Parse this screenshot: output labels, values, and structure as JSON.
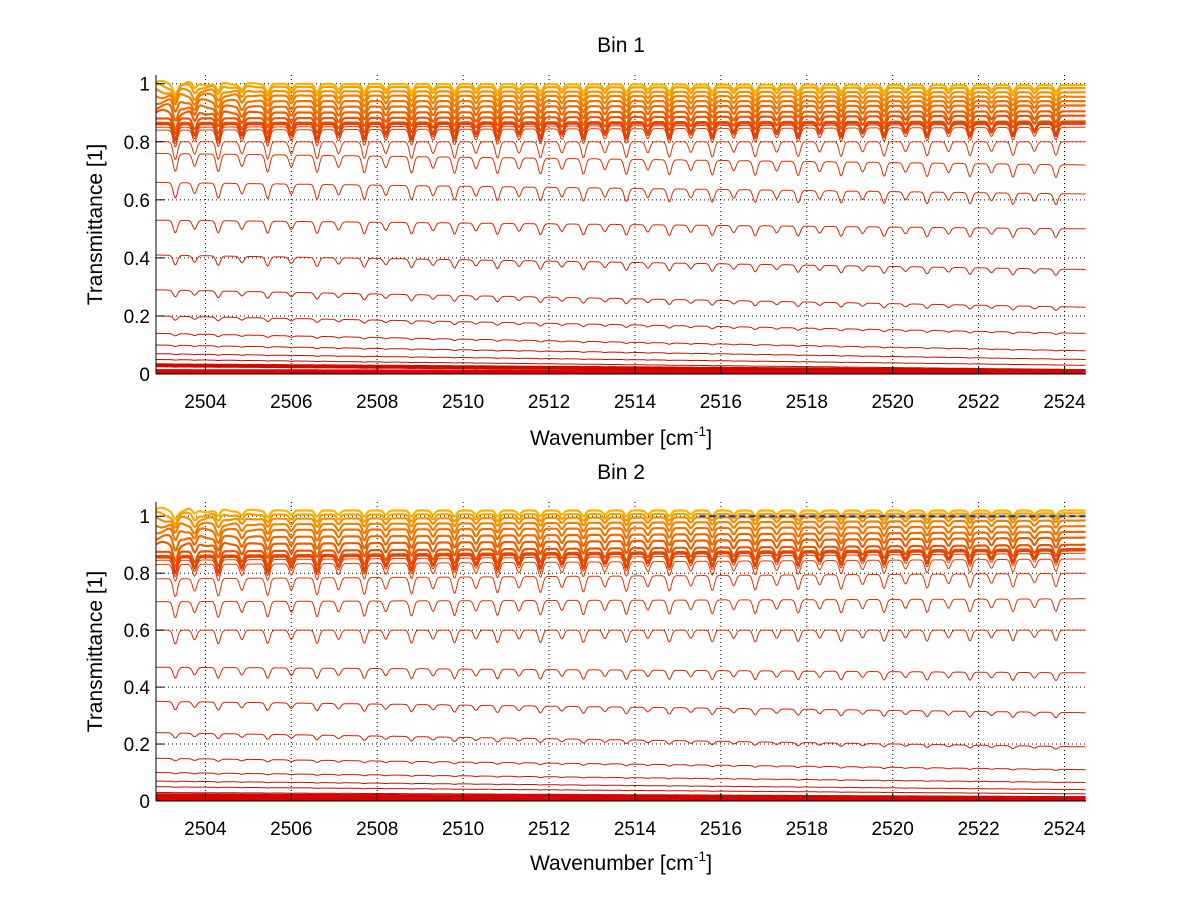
{
  "figure": {
    "background": "#ffffff"
  },
  "chart_data": [
    {
      "type": "line",
      "title": "Bin 1",
      "xlabel": "Wavenumber [cm",
      "xlabel_sup": "-1",
      "xlabel_close": "]",
      "ylabel": "Transmittance [1]",
      "xlim": [
        2502.85,
        2524.5
      ],
      "ylim": [
        0,
        1.03
      ],
      "x_ticks": [
        2504,
        2506,
        2508,
        2510,
        2512,
        2514,
        2516,
        2518,
        2520,
        2522,
        2524
      ],
      "x_tick_labels": [
        "2504",
        "2506",
        "2508",
        "2510",
        "2512",
        "2514",
        "2516",
        "2518",
        "2520",
        "2522",
        "2524"
      ],
      "y_ticks": [
        0,
        0.2,
        0.4,
        0.6,
        0.8,
        1
      ],
      "y_tick_labels": [
        "0",
        "0.2",
        "0.4",
        "0.6",
        "0.8",
        "1"
      ],
      "grid": true,
      "grid_style": "dotted",
      "legend": "none",
      "absorption_line_positions": [
        2503.3,
        2503.75,
        2504.3,
        2504.85,
        2505.45,
        2506.0,
        2506.6,
        2507.1,
        2507.7,
        2508.2,
        2508.8,
        2509.3,
        2509.8,
        2510.3,
        2510.8,
        2511.3,
        2511.8,
        2512.3,
        2512.8,
        2513.3,
        2513.8,
        2514.3,
        2514.8,
        2515.3,
        2515.8,
        2516.3,
        2516.8,
        2517.3,
        2517.8,
        2518.3,
        2518.8,
        2519.3,
        2519.8,
        2520.3,
        2520.8,
        2521.3,
        2521.8,
        2522.3,
        2522.8,
        2523.3,
        2523.8
      ],
      "series_baselines": [
        {
          "start": 1.0,
          "end": 0.995,
          "color": "#f6b300"
        },
        {
          "start": 0.99,
          "end": 0.985,
          "color": "#f4a000"
        },
        {
          "start": 0.975,
          "end": 0.97,
          "color": "#f29000"
        },
        {
          "start": 0.96,
          "end": 0.955,
          "color": "#f08000"
        },
        {
          "start": 0.94,
          "end": 0.94,
          "color": "#ee7400"
        },
        {
          "start": 0.92,
          "end": 0.925,
          "color": "#ec6a00"
        },
        {
          "start": 0.9,
          "end": 0.905,
          "color": "#ea5e00"
        },
        {
          "start": 0.88,
          "end": 0.89,
          "color": "#e85400"
        },
        {
          "start": 0.865,
          "end": 0.87,
          "color": "#e84a00"
        },
        {
          "start": 0.86,
          "end": 0.865,
          "color": "#e64400"
        },
        {
          "start": 0.85,
          "end": 0.86,
          "color": "#e43e00"
        },
        {
          "start": 0.84,
          "end": 0.85,
          "color": "#e23800"
        },
        {
          "start": 0.8,
          "end": 0.8,
          "color": "#e03400"
        },
        {
          "start": 0.76,
          "end": 0.72,
          "color": "#dc3000"
        },
        {
          "start": 0.66,
          "end": 0.62,
          "color": "#d82c00"
        },
        {
          "start": 0.53,
          "end": 0.5,
          "color": "#d42800"
        },
        {
          "start": 0.41,
          "end": 0.36,
          "color": "#d02400"
        },
        {
          "start": 0.29,
          "end": 0.23,
          "color": "#cc2000"
        },
        {
          "start": 0.2,
          "end": 0.14,
          "color": "#c81c00"
        },
        {
          "start": 0.14,
          "end": 0.08,
          "color": "#c41800"
        },
        {
          "start": 0.1,
          "end": 0.05,
          "color": "#c01400"
        },
        {
          "start": 0.07,
          "end": 0.03,
          "color": "#bc1000"
        },
        {
          "start": 0.05,
          "end": 0.015,
          "color": "#c00c00"
        },
        {
          "start": 0.03,
          "end": 0.01,
          "color": "#cc0a00"
        },
        {
          "start": 0.01,
          "end": 0.005,
          "color": "#dc0000"
        },
        {
          "start": 0.0,
          "end": 0.0,
          "color": "#e00000"
        }
      ]
    },
    {
      "type": "line",
      "title": "Bin 2",
      "xlabel": "Wavenumber [cm",
      "xlabel_sup": "-1",
      "xlabel_close": "]",
      "ylabel": "Transmittance [1]",
      "xlim": [
        2502.85,
        2524.5
      ],
      "ylim": [
        0,
        1.05
      ],
      "x_ticks": [
        2504,
        2506,
        2508,
        2510,
        2512,
        2514,
        2516,
        2518,
        2520,
        2522,
        2524
      ],
      "x_tick_labels": [
        "2504",
        "2506",
        "2508",
        "2510",
        "2512",
        "2514",
        "2516",
        "2518",
        "2520",
        "2522",
        "2524"
      ],
      "y_ticks": [
        0,
        0.2,
        0.4,
        0.6,
        0.8,
        1
      ],
      "y_tick_labels": [
        "0",
        "0.2",
        "0.4",
        "0.6",
        "0.8",
        "1"
      ],
      "grid": true,
      "grid_style": "dotted",
      "legend": "none",
      "reference_line": {
        "y": 1.0,
        "color": "#1030c0"
      },
      "absorption_line_positions": [
        2503.3,
        2503.75,
        2504.3,
        2504.85,
        2505.45,
        2506.0,
        2506.6,
        2507.1,
        2507.7,
        2508.2,
        2508.8,
        2509.3,
        2509.8,
        2510.3,
        2510.8,
        2511.3,
        2511.8,
        2512.3,
        2512.8,
        2513.3,
        2513.8,
        2514.3,
        2514.8,
        2515.3,
        2515.8,
        2516.3,
        2516.8,
        2517.3,
        2517.8,
        2518.3,
        2518.8,
        2519.3,
        2519.8,
        2520.3,
        2520.8,
        2521.3,
        2521.8,
        2522.3,
        2522.8,
        2523.3,
        2523.8
      ],
      "series_baselines": [
        {
          "start": 1.02,
          "end": 1.02,
          "color": "#f6b300"
        },
        {
          "start": 1.005,
          "end": 1.01,
          "color": "#f4a000"
        },
        {
          "start": 0.99,
          "end": 1.0,
          "color": "#f29000"
        },
        {
          "start": 0.97,
          "end": 0.985,
          "color": "#f08000"
        },
        {
          "start": 0.95,
          "end": 0.965,
          "color": "#ee7400"
        },
        {
          "start": 0.925,
          "end": 0.945,
          "color": "#ec6a00"
        },
        {
          "start": 0.9,
          "end": 0.925,
          "color": "#ea5e00"
        },
        {
          "start": 0.875,
          "end": 0.9,
          "color": "#e85400"
        },
        {
          "start": 0.86,
          "end": 0.885,
          "color": "#e84a00"
        },
        {
          "start": 0.855,
          "end": 0.88,
          "color": "#e64400"
        },
        {
          "start": 0.845,
          "end": 0.87,
          "color": "#e43e00"
        },
        {
          "start": 0.83,
          "end": 0.85,
          "color": "#e23800"
        },
        {
          "start": 0.78,
          "end": 0.8,
          "color": "#e03400"
        },
        {
          "start": 0.7,
          "end": 0.71,
          "color": "#dc3000"
        },
        {
          "start": 0.6,
          "end": 0.6,
          "color": "#d82c00"
        },
        {
          "start": 0.47,
          "end": 0.45,
          "color": "#d42800"
        },
        {
          "start": 0.35,
          "end": 0.31,
          "color": "#d02400"
        },
        {
          "start": 0.24,
          "end": 0.19,
          "color": "#cc2000"
        },
        {
          "start": 0.15,
          "end": 0.11,
          "color": "#c81c00"
        },
        {
          "start": 0.1,
          "end": 0.065,
          "color": "#c41800"
        },
        {
          "start": 0.07,
          "end": 0.04,
          "color": "#c01400"
        },
        {
          "start": 0.05,
          "end": 0.025,
          "color": "#bc1000"
        },
        {
          "start": 0.03,
          "end": 0.015,
          "color": "#c00c00"
        },
        {
          "start": 0.02,
          "end": 0.01,
          "color": "#cc0a00"
        },
        {
          "start": 0.01,
          "end": 0.005,
          "color": "#dc0000"
        },
        {
          "start": 0.0,
          "end": 0.0,
          "color": "#e00000"
        }
      ]
    }
  ]
}
